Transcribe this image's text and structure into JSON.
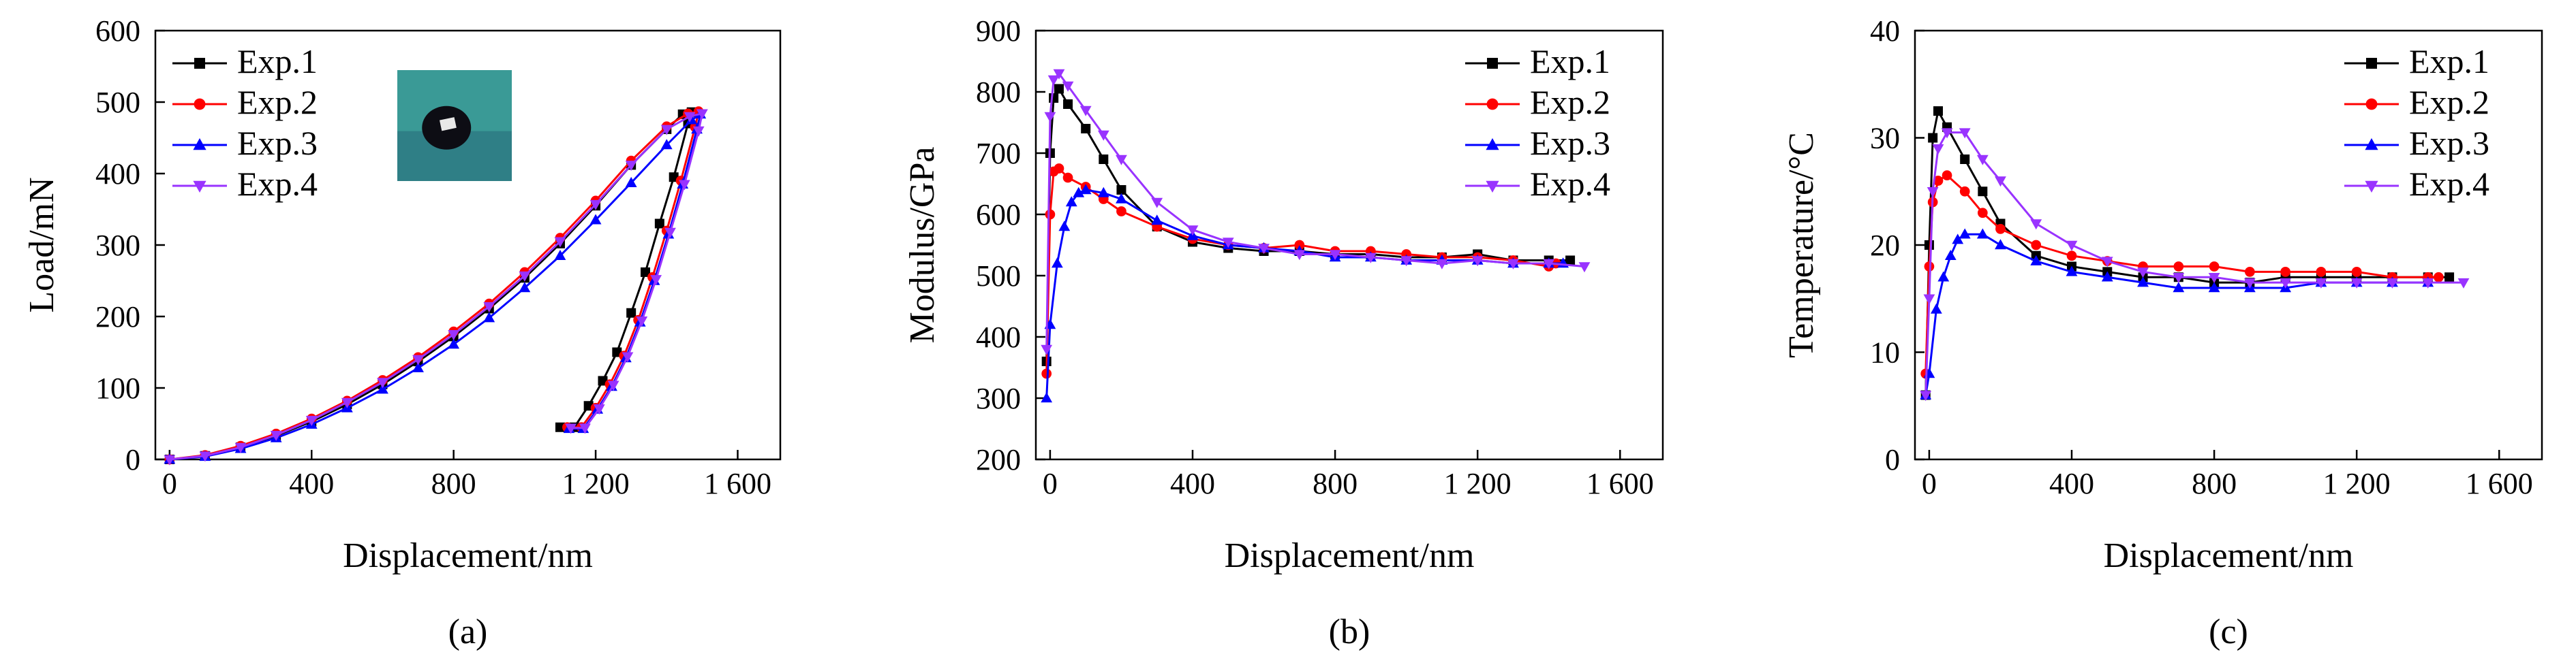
{
  "chart_data": [
    {
      "type": "line",
      "panel_label": "(a)",
      "xlabel": "Displacement/nm",
      "ylabel": "Load/mN",
      "xlim": [
        -40,
        1720
      ],
      "ylim": [
        0,
        600
      ],
      "x_ticks": [
        0,
        400,
        800,
        1200,
        1600
      ],
      "x_tick_labels": [
        "0",
        "400",
        "800",
        "1 200",
        "1 600"
      ],
      "y_ticks": [
        0,
        100,
        200,
        300,
        400,
        500,
        600
      ],
      "y_tick_labels": [
        "0",
        "100",
        "200",
        "300",
        "400",
        "500",
        "600"
      ],
      "legend_position": "top-left",
      "inset": "indent-photo",
      "series": [
        {
          "name": "Exp.1",
          "color": "#000000",
          "marker": "square",
          "x": [
            0,
            100,
            200,
            300,
            400,
            500,
            600,
            700,
            800,
            900,
            1000,
            1100,
            1200,
            1300,
            1400,
            1445,
            1470,
            1460,
            1420,
            1380,
            1340,
            1300,
            1260,
            1220,
            1180,
            1140,
            1100
          ],
          "y": [
            0,
            5,
            17,
            33,
            53,
            77,
            105,
            137,
            172,
            211,
            254,
            302,
            355,
            412,
            462,
            483,
            486,
            470,
            395,
            330,
            262,
            205,
            150,
            110,
            75,
            45,
            45
          ]
        },
        {
          "name": "Exp.2",
          "color": "#ff0000",
          "marker": "circle",
          "x": [
            0,
            100,
            200,
            300,
            400,
            500,
            600,
            700,
            800,
            900,
            1000,
            1100,
            1200,
            1300,
            1400,
            1460,
            1490,
            1480,
            1440,
            1400,
            1360,
            1320,
            1280,
            1240,
            1200,
            1160,
            1120
          ],
          "y": [
            0,
            6,
            19,
            36,
            57,
            82,
            111,
            143,
            179,
            218,
            262,
            310,
            362,
            418,
            466,
            484,
            487,
            465,
            390,
            320,
            255,
            195,
            145,
            105,
            72,
            45,
            45
          ]
        },
        {
          "name": "Exp.3",
          "color": "#0000ff",
          "marker": "triangle-up",
          "x": [
            0,
            100,
            200,
            300,
            400,
            500,
            600,
            700,
            800,
            900,
            1000,
            1100,
            1200,
            1300,
            1400,
            1470,
            1495,
            1485,
            1445,
            1405,
            1365,
            1325,
            1285,
            1245,
            1205,
            1165,
            1125
          ],
          "y": [
            0,
            4,
            15,
            30,
            49,
            72,
            98,
            128,
            161,
            198,
            240,
            285,
            335,
            387,
            440,
            475,
            483,
            462,
            385,
            315,
            250,
            192,
            142,
            102,
            70,
            43,
            43
          ]
        },
        {
          "name": "Exp.4",
          "color": "#9933ff",
          "marker": "triangle-down",
          "x": [
            0,
            100,
            200,
            300,
            400,
            500,
            600,
            700,
            800,
            900,
            1000,
            1100,
            1200,
            1300,
            1400,
            1465,
            1500,
            1490,
            1450,
            1410,
            1370,
            1330,
            1290,
            1250,
            1210,
            1170,
            1130
          ],
          "y": [
            0,
            5,
            17,
            34,
            55,
            80,
            108,
            140,
            175,
            214,
            257,
            305,
            357,
            412,
            462,
            480,
            484,
            460,
            385,
            318,
            252,
            194,
            144,
            104,
            71,
            44,
            44
          ]
        }
      ]
    },
    {
      "type": "line",
      "panel_label": "(b)",
      "xlabel": "Displacement/nm",
      "ylabel": "Modulus/GPa",
      "xlim": [
        -40,
        1720
      ],
      "ylim": [
        200,
        900
      ],
      "x_ticks": [
        0,
        400,
        800,
        1200,
        1600
      ],
      "x_tick_labels": [
        "0",
        "400",
        "800",
        "1 200",
        "1 600"
      ],
      "y_ticks": [
        200,
        300,
        400,
        500,
        600,
        700,
        800,
        900
      ],
      "y_tick_labels": [
        "200",
        "300",
        "400",
        "500",
        "600",
        "700",
        "800",
        "900"
      ],
      "legend_position": "top-right",
      "series": [
        {
          "name": "Exp.1",
          "color": "#000000",
          "marker": "square",
          "x": [
            -10,
            0,
            10,
            25,
            50,
            100,
            150,
            200,
            300,
            400,
            500,
            600,
            700,
            800,
            900,
            1000,
            1100,
            1200,
            1300,
            1400,
            1460
          ],
          "y": [
            360,
            700,
            790,
            805,
            780,
            740,
            690,
            640,
            580,
            555,
            545,
            540,
            540,
            535,
            535,
            530,
            530,
            535,
            525,
            525,
            525
          ]
        },
        {
          "name": "Exp.2",
          "color": "#ff0000",
          "marker": "circle",
          "x": [
            -10,
            0,
            10,
            25,
            50,
            100,
            150,
            200,
            300,
            400,
            500,
            600,
            700,
            800,
            900,
            1000,
            1100,
            1200,
            1300,
            1400,
            1420
          ],
          "y": [
            340,
            600,
            670,
            675,
            660,
            645,
            625,
            605,
            580,
            560,
            550,
            545,
            550,
            540,
            540,
            535,
            530,
            530,
            525,
            515,
            520
          ]
        },
        {
          "name": "Exp.3",
          "color": "#0000ff",
          "marker": "triangle-up",
          "x": [
            -10,
            0,
            20,
            40,
            60,
            80,
            100,
            150,
            200,
            300,
            400,
            500,
            600,
            700,
            800,
            900,
            1000,
            1100,
            1200,
            1300,
            1400,
            1440
          ],
          "y": [
            300,
            420,
            520,
            580,
            620,
            635,
            640,
            635,
            625,
            590,
            565,
            550,
            545,
            540,
            530,
            530,
            525,
            525,
            525,
            520,
            520,
            520
          ]
        },
        {
          "name": "Exp.4",
          "color": "#9933ff",
          "marker": "triangle-down",
          "x": [
            -10,
            0,
            10,
            25,
            50,
            100,
            150,
            200,
            300,
            400,
            500,
            600,
            700,
            800,
            900,
            1000,
            1100,
            1200,
            1300,
            1400,
            1500
          ],
          "y": [
            380,
            760,
            820,
            830,
            810,
            770,
            730,
            690,
            620,
            575,
            555,
            545,
            535,
            535,
            530,
            525,
            520,
            525,
            520,
            520,
            515
          ]
        }
      ]
    },
    {
      "type": "line",
      "panel_label": "(c)",
      "xlabel": "Displacement/nm",
      "ylabel": "Temperature/°C",
      "xlim": [
        -40,
        1720
      ],
      "ylim": [
        0,
        40
      ],
      "x_ticks": [
        0,
        400,
        800,
        1200,
        1600
      ],
      "x_tick_labels": [
        "0",
        "400",
        "800",
        "1 200",
        "1 600"
      ],
      "y_ticks": [
        0,
        10,
        20,
        30,
        40
      ],
      "y_tick_labels": [
        "0",
        "10",
        "20",
        "30",
        "40"
      ],
      "legend_position": "top-right",
      "series": [
        {
          "name": "Exp.1",
          "color": "#000000",
          "marker": "square",
          "x": [
            -10,
            0,
            10,
            25,
            50,
            100,
            150,
            200,
            300,
            400,
            500,
            600,
            700,
            800,
            900,
            1000,
            1100,
            1200,
            1300,
            1400,
            1460
          ],
          "y": [
            6,
            20,
            30,
            32.5,
            31,
            28,
            25,
            22,
            19,
            18,
            17.5,
            17,
            17,
            16.5,
            16.5,
            17,
            17,
            17,
            17,
            17,
            17
          ]
        },
        {
          "name": "Exp.2",
          "color": "#ff0000",
          "marker": "circle",
          "x": [
            -10,
            0,
            10,
            25,
            50,
            100,
            150,
            200,
            300,
            400,
            500,
            600,
            700,
            800,
            900,
            1000,
            1100,
            1200,
            1300,
            1400,
            1430
          ],
          "y": [
            8,
            18,
            24,
            26,
            26.5,
            25,
            23,
            21.5,
            20,
            19,
            18.5,
            18,
            18,
            18,
            17.5,
            17.5,
            17.5,
            17.5,
            17,
            17,
            17
          ]
        },
        {
          "name": "Exp.3",
          "color": "#0000ff",
          "marker": "triangle-up",
          "x": [
            -10,
            0,
            20,
            40,
            60,
            80,
            100,
            150,
            200,
            300,
            400,
            500,
            600,
            700,
            800,
            900,
            1000,
            1100,
            1200,
            1300,
            1400
          ],
          "y": [
            6,
            8,
            14,
            17,
            19,
            20.5,
            21,
            21,
            20,
            18.5,
            17.5,
            17,
            16.5,
            16,
            16,
            16,
            16,
            16.5,
            16.5,
            16.5,
            16.5
          ]
        },
        {
          "name": "Exp.4",
          "color": "#9933ff",
          "marker": "triangle-down",
          "x": [
            -10,
            0,
            10,
            25,
            50,
            100,
            150,
            200,
            300,
            400,
            500,
            600,
            700,
            800,
            900,
            1000,
            1100,
            1200,
            1300,
            1400,
            1500
          ],
          "y": [
            6,
            15,
            25,
            29,
            30.5,
            30.5,
            28,
            26,
            22,
            20,
            18.5,
            17.5,
            17,
            17,
            16.5,
            16.5,
            16.5,
            16.5,
            16.5,
            16.5,
            16.5
          ]
        }
      ]
    }
  ]
}
